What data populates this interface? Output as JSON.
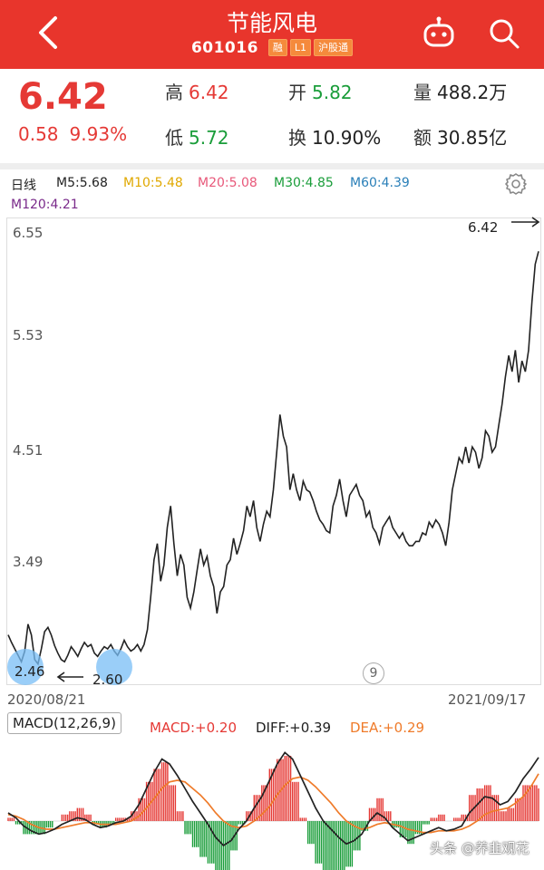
{
  "header": {
    "title": "节能风电",
    "code": "601016",
    "badges": [
      "融",
      "L1",
      "沪股通"
    ]
  },
  "quote": {
    "price": "6.42",
    "change": "0.58",
    "change_pct": "9.93%",
    "high_label": "高",
    "high": "6.42",
    "open_label": "开",
    "open": "5.82",
    "volume_label": "量",
    "volume": "488.2万",
    "low_label": "低",
    "low": "5.72",
    "turnover_label": "换",
    "turnover": "10.90%",
    "amount_label": "额",
    "amount": "30.85亿"
  },
  "ma_bar": {
    "period": "日线",
    "ma5": "M5:5.68",
    "ma10": "M10:5.48",
    "ma20": "M20:5.08",
    "ma30": "M30:4.85",
    "ma60": "M60:4.39",
    "ma120": "M120:4.21"
  },
  "colors": {
    "up": "#e53935",
    "down": "#1a9d3a",
    "brand": "#e8352c",
    "ma5": "#222222",
    "ma10": "#e0a800",
    "ma20": "#e8587a",
    "ma30": "#1a9d3a",
    "ma60": "#2a7fb8",
    "ma120": "#7a2a8a",
    "diff": "#222222",
    "dea": "#ef7b2a"
  },
  "chart": {
    "y_ticks": [
      "6.55",
      "5.53",
      "4.51",
      "3.49"
    ],
    "start_date": "2020/08/21",
    "end_date": "2021/09/17",
    "high_marker": "6.42",
    "low_marker_1": "2.46",
    "low_marker_2": "2.60",
    "circle_label": "9"
  },
  "macd": {
    "label": "MACD(12,26,9)",
    "macd": "MACD:+0.20",
    "diff": "DIFF:+0.39",
    "dea": "DEA:+0.29"
  },
  "watermark": "头条 @养韭观花",
  "chart_data": {
    "type": "line",
    "title": "",
    "xlabel": "",
    "ylabel": "",
    "x_range": [
      "2020/08/21",
      "2021/09/17"
    ],
    "ylim": [
      2.45,
      6.6
    ],
    "y_ticks": [
      6.55,
      5.53,
      4.51,
      3.49
    ],
    "series": [
      {
        "values": [
          2.85,
          2.78,
          2.72,
          2.66,
          2.6,
          2.7,
          2.95,
          2.85,
          2.62,
          2.58,
          2.72,
          2.88,
          2.92,
          2.85,
          2.75,
          2.68,
          2.62,
          2.6,
          2.66,
          2.74,
          2.7,
          2.65,
          2.72,
          2.78,
          2.74,
          2.76,
          2.68,
          2.65,
          2.7,
          2.74,
          2.72,
          2.76,
          2.7,
          2.66,
          2.72,
          2.8,
          2.74,
          2.7,
          2.72,
          2.76,
          2.7,
          2.76,
          2.9,
          3.2,
          3.55,
          3.7,
          3.35,
          3.5,
          3.85,
          4.05,
          3.7,
          3.4,
          3.6,
          3.5,
          3.2,
          3.1,
          3.25,
          3.45,
          3.65,
          3.5,
          3.58,
          3.4,
          3.3,
          3.05,
          3.25,
          3.3,
          3.5,
          3.55,
          3.75,
          3.6,
          3.7,
          3.82,
          4.05,
          3.95,
          4.1,
          3.85,
          3.72,
          3.88,
          4.0,
          3.95,
          4.2,
          4.55,
          4.9,
          4.7,
          4.6,
          4.2,
          4.35,
          4.2,
          4.1,
          4.28,
          4.2,
          4.18,
          4.1,
          4.0,
          3.92,
          3.88,
          3.82,
          3.8,
          4.05,
          4.15,
          4.3,
          4.1,
          3.95,
          4.15,
          4.2,
          4.25,
          4.15,
          4.1,
          3.95,
          4.0,
          3.85,
          3.8,
          3.7,
          3.85,
          3.9,
          3.95,
          3.85,
          3.8,
          3.75,
          3.8,
          3.72,
          3.68,
          3.68,
          3.72,
          3.72,
          3.8,
          3.78,
          3.9,
          3.85,
          3.92,
          3.88,
          3.8,
          3.68,
          3.9,
          4.2,
          4.35,
          4.5,
          4.45,
          4.6,
          4.45,
          4.6,
          4.55,
          4.4,
          4.5,
          4.75,
          4.7,
          4.55,
          4.6,
          4.8,
          5.0,
          5.25,
          5.45,
          5.3,
          5.5,
          5.2,
          5.4,
          5.3,
          5.5,
          5.95,
          6.3,
          6.42
        ]
      }
    ],
    "high": {
      "value": 6.42,
      "label": "6.42"
    },
    "low": {
      "value": 2.46,
      "label": "2.46"
    },
    "macd": {
      "diff": [
        0.05,
        0.02,
        -0.03,
        -0.06,
        -0.08,
        -0.07,
        -0.05,
        -0.02,
        0.0,
        0.02,
        0.01,
        -0.02,
        -0.04,
        -0.03,
        -0.01,
        0.0,
        0.03,
        0.1,
        0.2,
        0.3,
        0.38,
        0.35,
        0.28,
        0.2,
        0.12,
        0.05,
        -0.02,
        -0.1,
        -0.15,
        -0.12,
        -0.05,
        0.0,
        0.08,
        0.15,
        0.25,
        0.35,
        0.42,
        0.38,
        0.28,
        0.18,
        0.08,
        0.0,
        -0.05,
        -0.1,
        -0.14,
        -0.12,
        -0.08,
        0.0,
        0.05,
        0.02,
        -0.04,
        -0.08,
        -0.12,
        -0.1,
        -0.08,
        -0.06,
        -0.04,
        -0.06,
        -0.05,
        -0.03,
        0.05,
        0.1,
        0.15,
        0.14,
        0.1,
        0.12,
        0.18,
        0.26,
        0.32,
        0.39
      ],
      "dea": [
        0.04,
        0.03,
        0.01,
        -0.02,
        -0.04,
        -0.05,
        -0.05,
        -0.04,
        -0.03,
        -0.02,
        -0.01,
        -0.01,
        -0.02,
        -0.02,
        -0.02,
        -0.01,
        0.0,
        0.03,
        0.08,
        0.14,
        0.2,
        0.24,
        0.25,
        0.24,
        0.2,
        0.16,
        0.11,
        0.05,
        0.0,
        -0.03,
        -0.04,
        -0.03,
        0.0,
        0.04,
        0.09,
        0.16,
        0.22,
        0.26,
        0.27,
        0.25,
        0.21,
        0.16,
        0.11,
        0.05,
        0.0,
        -0.03,
        -0.05,
        -0.04,
        -0.02,
        -0.01,
        -0.02,
        -0.03,
        -0.05,
        -0.06,
        -0.07,
        -0.07,
        -0.06,
        -0.06,
        -0.06,
        -0.05,
        -0.03,
        0.0,
        0.04,
        0.06,
        0.07,
        0.08,
        0.11,
        0.15,
        0.21,
        0.29
      ]
    }
  }
}
